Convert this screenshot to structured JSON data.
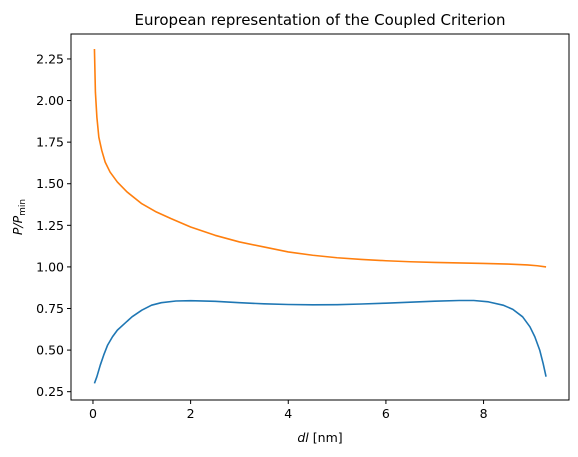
{
  "chart_data": {
    "type": "line",
    "title": "European representation of the Coupled Criterion",
    "xlabel": {
      "italic": "dl",
      "rest": " [nm]"
    },
    "ylabel": {
      "main": "P/P",
      "sub": "min"
    },
    "xlim": [
      -0.45,
      9.75
    ],
    "ylim": [
      0.2,
      2.4
    ],
    "xticks": [
      0,
      2,
      4,
      6,
      8
    ],
    "yticks": [
      0.25,
      0.5,
      0.75,
      1.0,
      1.25,
      1.5,
      1.75,
      2.0,
      2.25
    ],
    "ytick_labels": [
      "0.25",
      "0.50",
      "0.75",
      "1.00",
      "1.25",
      "1.50",
      "1.75",
      "2.00",
      "2.25"
    ],
    "grid": false,
    "legend": "none",
    "series": [
      {
        "color": "#1f77b4",
        "points": [
          [
            0.03,
            0.3
          ],
          [
            0.08,
            0.34
          ],
          [
            0.15,
            0.41
          ],
          [
            0.22,
            0.47
          ],
          [
            0.3,
            0.53
          ],
          [
            0.4,
            0.58
          ],
          [
            0.5,
            0.62
          ],
          [
            0.65,
            0.66
          ],
          [
            0.8,
            0.7
          ],
          [
            1.0,
            0.74
          ],
          [
            1.2,
            0.77
          ],
          [
            1.4,
            0.785
          ],
          [
            1.7,
            0.795
          ],
          [
            2.0,
            0.797
          ],
          [
            2.5,
            0.793
          ],
          [
            3.0,
            0.785
          ],
          [
            3.5,
            0.778
          ],
          [
            4.0,
            0.774
          ],
          [
            4.5,
            0.772
          ],
          [
            5.0,
            0.773
          ],
          [
            5.5,
            0.777
          ],
          [
            6.0,
            0.782
          ],
          [
            6.5,
            0.788
          ],
          [
            7.0,
            0.794
          ],
          [
            7.5,
            0.798
          ],
          [
            7.8,
            0.798
          ],
          [
            8.1,
            0.79
          ],
          [
            8.4,
            0.77
          ],
          [
            8.6,
            0.745
          ],
          [
            8.8,
            0.7
          ],
          [
            8.95,
            0.64
          ],
          [
            9.05,
            0.58
          ],
          [
            9.15,
            0.5
          ],
          [
            9.22,
            0.42
          ],
          [
            9.28,
            0.34
          ]
        ]
      },
      {
        "color": "#ff7f0e",
        "points": [
          [
            0.03,
            2.31
          ],
          [
            0.05,
            2.05
          ],
          [
            0.08,
            1.9
          ],
          [
            0.12,
            1.78
          ],
          [
            0.18,
            1.7
          ],
          [
            0.25,
            1.63
          ],
          [
            0.35,
            1.57
          ],
          [
            0.5,
            1.51
          ],
          [
            0.7,
            1.45
          ],
          [
            1.0,
            1.38
          ],
          [
            1.3,
            1.33
          ],
          [
            1.6,
            1.29
          ],
          [
            2.0,
            1.24
          ],
          [
            2.5,
            1.19
          ],
          [
            3.0,
            1.15
          ],
          [
            3.5,
            1.12
          ],
          [
            4.0,
            1.09
          ],
          [
            4.5,
            1.07
          ],
          [
            5.0,
            1.055
          ],
          [
            5.5,
            1.045
          ],
          [
            6.0,
            1.037
          ],
          [
            6.5,
            1.031
          ],
          [
            7.0,
            1.027
          ],
          [
            7.5,
            1.024
          ],
          [
            8.0,
            1.021
          ],
          [
            8.5,
            1.017
          ],
          [
            8.9,
            1.012
          ],
          [
            9.1,
            1.007
          ],
          [
            9.28,
            1.0
          ]
        ]
      }
    ]
  }
}
